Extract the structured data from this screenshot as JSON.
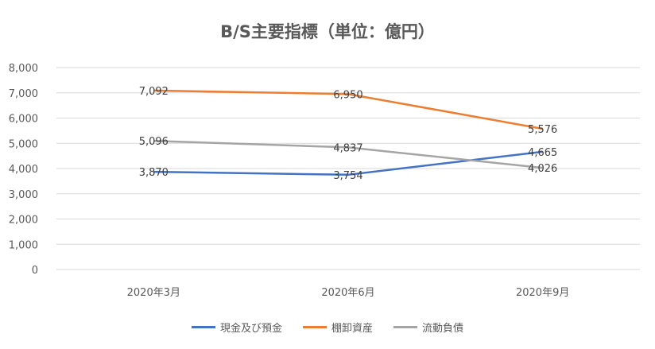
{
  "chart_data": {
    "type": "line",
    "title": "B/S主要指標（単位：億円）",
    "categories": [
      "2020年3月",
      "2020年6月",
      "2020年9月"
    ],
    "ylim": [
      0,
      8000
    ],
    "yticks": [
      "0",
      "1,000",
      "2,000",
      "3,000",
      "4,000",
      "5,000",
      "6,000",
      "7,000",
      "8,000"
    ],
    "grid": true,
    "legend_position": "bottom",
    "series": [
      {
        "name": "現金及び預金",
        "color": "#4472C4",
        "values": [
          3870,
          3754,
          4665
        ],
        "labels": [
          "3,870",
          "3,754",
          "4,665"
        ]
      },
      {
        "name": "棚卸資産",
        "color": "#ED7D31",
        "values": [
          7092,
          6950,
          5576
        ],
        "labels": [
          "7,092",
          "6,950",
          "5,576"
        ]
      },
      {
        "name": "流動負債",
        "color": "#A5A5A5",
        "values": [
          5096,
          4837,
          4026
        ],
        "labels": [
          "5,096",
          "4,837",
          "4,026"
        ]
      }
    ]
  }
}
